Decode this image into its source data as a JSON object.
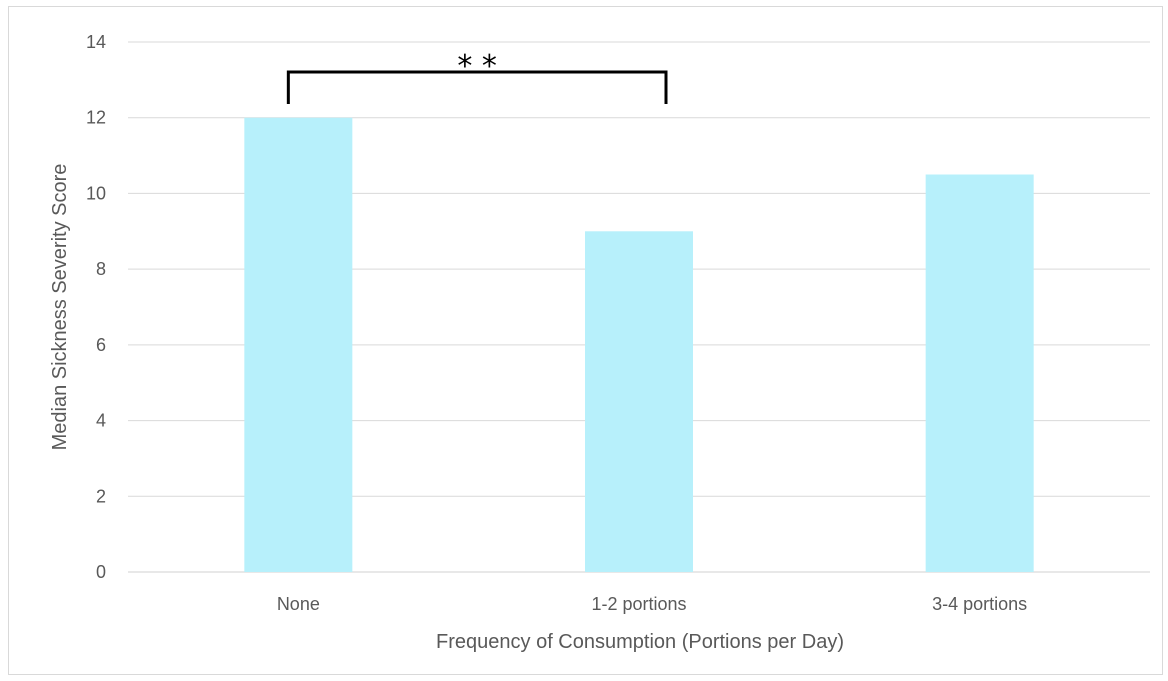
{
  "chart_data": {
    "type": "bar",
    "title": "",
    "xlabel": "Frequency of Consumption (Portions per Day)",
    "ylabel": "Median Sickness Severity Score",
    "categories": [
      "None",
      "1-2 portions",
      "3-4 portions"
    ],
    "values": [
      12,
      9,
      10.5
    ],
    "ylim": [
      0,
      14
    ],
    "yticks": [
      0,
      2,
      4,
      6,
      8,
      10,
      12,
      14
    ],
    "grid": true,
    "legend": "none",
    "bar_color": "#b7f0fb",
    "annotations": [
      {
        "text": "* *",
        "type": "significance-bracket",
        "from_category": "None",
        "to_category": "1-2 portions"
      }
    ]
  }
}
